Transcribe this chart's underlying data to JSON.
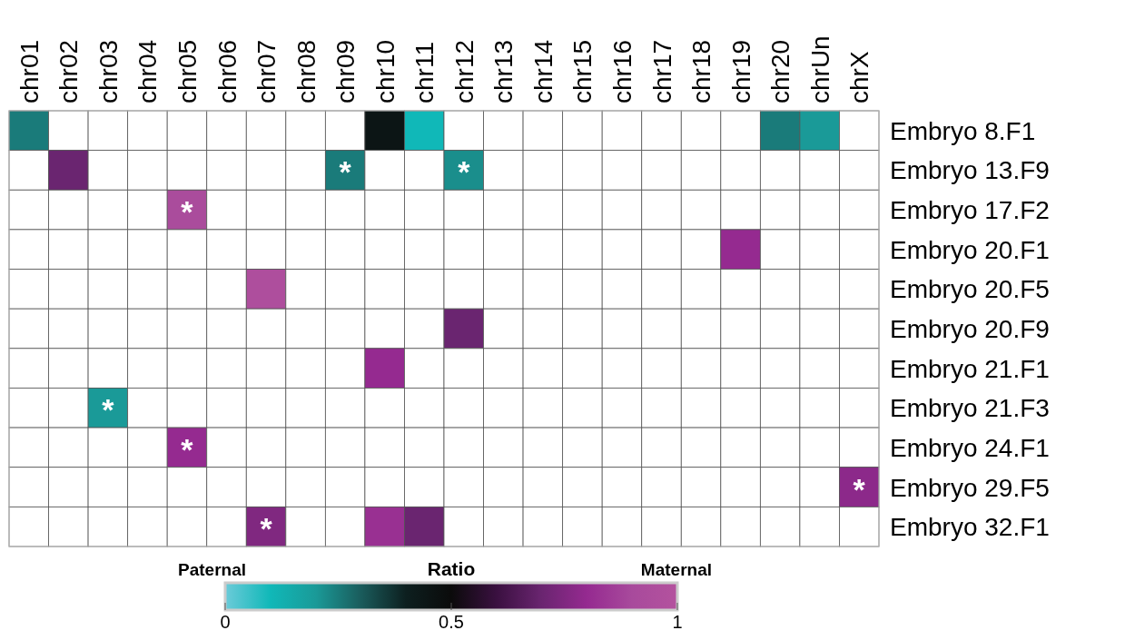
{
  "chart_data": {
    "type": "heatmap",
    "categories": [
      "chr01",
      "chr02",
      "chr03",
      "chr04",
      "chr05",
      "chr06",
      "chr07",
      "chr08",
      "chr09",
      "chr10",
      "chr11",
      "chr12",
      "chr13",
      "chr14",
      "chr15",
      "chr16",
      "chr17",
      "chr18",
      "chr19",
      "chr20",
      "chrUn",
      "chrX"
    ],
    "y_categories": [
      "Embryo 8.F1",
      "Embryo 13.F9",
      "Embryo 17.F2",
      "Embryo 20.F1",
      "Embryo 20.F5",
      "Embryo 20.F9",
      "Embryo 21.F1",
      "Embryo 21.F3",
      "Embryo 24.F1",
      "Embryo 29.F5",
      "Embryo 32.F1"
    ],
    "cells": [
      [
        0.25,
        null,
        null,
        null,
        null,
        null,
        null,
        null,
        null,
        0.45,
        0.1,
        null,
        null,
        null,
        null,
        null,
        null,
        null,
        null,
        0.25,
        0.2,
        null
      ],
      [
        null,
        0.7,
        null,
        null,
        null,
        null,
        null,
        null,
        0.25,
        null,
        null,
        0.22,
        null,
        null,
        null,
        null,
        null,
        null,
        null,
        null,
        null,
        null
      ],
      [
        null,
        null,
        null,
        null,
        0.92,
        null,
        null,
        null,
        null,
        null,
        null,
        null,
        null,
        null,
        null,
        null,
        null,
        null,
        null,
        null,
        null,
        null
      ],
      [
        null,
        null,
        null,
        null,
        null,
        null,
        null,
        null,
        null,
        null,
        null,
        null,
        null,
        null,
        null,
        null,
        null,
        null,
        0.8,
        null,
        null,
        null
      ],
      [
        null,
        null,
        null,
        null,
        null,
        null,
        0.95,
        null,
        null,
        null,
        null,
        null,
        null,
        null,
        null,
        null,
        null,
        null,
        null,
        null,
        null,
        null
      ],
      [
        null,
        null,
        null,
        null,
        null,
        null,
        null,
        null,
        null,
        null,
        null,
        0.7,
        null,
        null,
        null,
        null,
        null,
        null,
        null,
        null,
        null,
        null
      ],
      [
        null,
        null,
        null,
        null,
        null,
        null,
        null,
        null,
        null,
        0.8,
        null,
        null,
        null,
        null,
        null,
        null,
        null,
        null,
        null,
        null,
        null,
        null
      ],
      [
        null,
        null,
        0.2,
        null,
        null,
        null,
        null,
        null,
        null,
        null,
        null,
        null,
        null,
        null,
        null,
        null,
        null,
        null,
        null,
        null,
        null,
        null
      ],
      [
        null,
        null,
        null,
        null,
        0.8,
        null,
        null,
        null,
        null,
        null,
        null,
        null,
        null,
        null,
        null,
        null,
        null,
        null,
        null,
        null,
        null,
        null
      ],
      [
        null,
        null,
        null,
        null,
        null,
        null,
        null,
        null,
        null,
        null,
        null,
        null,
        null,
        null,
        null,
        null,
        null,
        null,
        null,
        null,
        null,
        0.78
      ],
      [
        null,
        null,
        null,
        null,
        null,
        null,
        0.75,
        null,
        null,
        0.82,
        0.7,
        null,
        null,
        null,
        null,
        null,
        null,
        null,
        null,
        null,
        null,
        null
      ]
    ],
    "cell_labels": [
      [
        null,
        null,
        null,
        null,
        null,
        null,
        null,
        null,
        null,
        null,
        null,
        null,
        null,
        null,
        null,
        null,
        null,
        null,
        null,
        null,
        null,
        null
      ],
      [
        null,
        null,
        null,
        null,
        null,
        null,
        null,
        null,
        "*",
        null,
        null,
        "*",
        null,
        null,
        null,
        null,
        null,
        null,
        null,
        null,
        null,
        null
      ],
      [
        null,
        null,
        null,
        null,
        "*",
        null,
        null,
        null,
        null,
        null,
        null,
        null,
        null,
        null,
        null,
        null,
        null,
        null,
        null,
        null,
        null,
        null
      ],
      [
        null,
        null,
        null,
        null,
        null,
        null,
        null,
        null,
        null,
        null,
        null,
        null,
        null,
        null,
        null,
        null,
        null,
        null,
        null,
        null,
        null,
        null
      ],
      [
        null,
        null,
        null,
        null,
        null,
        null,
        null,
        null,
        null,
        null,
        null,
        null,
        null,
        null,
        null,
        null,
        null,
        null,
        null,
        null,
        null,
        null
      ],
      [
        null,
        null,
        null,
        null,
        null,
        null,
        null,
        null,
        null,
        null,
        null,
        null,
        null,
        null,
        null,
        null,
        null,
        null,
        null,
        null,
        null,
        null
      ],
      [
        null,
        null,
        null,
        null,
        null,
        null,
        null,
        null,
        null,
        null,
        null,
        null,
        null,
        null,
        null,
        null,
        null,
        null,
        null,
        null,
        null,
        null
      ],
      [
        null,
        null,
        "*",
        null,
        null,
        null,
        null,
        null,
        null,
        null,
        null,
        null,
        null,
        null,
        null,
        null,
        null,
        null,
        null,
        null,
        null,
        null
      ],
      [
        null,
        null,
        null,
        null,
        "*",
        null,
        null,
        null,
        null,
        null,
        null,
        null,
        null,
        null,
        null,
        null,
        null,
        null,
        null,
        null,
        null,
        null
      ],
      [
        null,
        null,
        null,
        null,
        null,
        null,
        null,
        null,
        null,
        null,
        null,
        null,
        null,
        null,
        null,
        null,
        null,
        null,
        null,
        null,
        null,
        "*"
      ],
      [
        null,
        null,
        null,
        null,
        null,
        null,
        "*",
        null,
        null,
        null,
        null,
        null,
        null,
        null,
        null,
        null,
        null,
        null,
        null,
        null,
        null,
        null
      ]
    ],
    "clabel": "Ratio",
    "clim": [
      0,
      1
    ],
    "cticks": [
      0,
      0.5,
      1
    ],
    "annotations": [
      "Paternal",
      "Maternal"
    ]
  }
}
